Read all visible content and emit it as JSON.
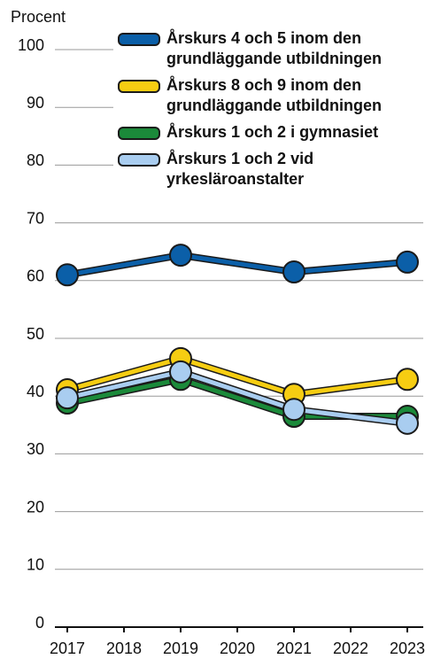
{
  "chart_data": {
    "type": "line",
    "y_label": "Procent",
    "x": [
      2017,
      2019,
      2021,
      2023
    ],
    "series": [
      {
        "name": "Årskurs 4 och 5 inom den grundläggande utbildningen",
        "color": "#0b5fa8",
        "values": [
          61.0,
          64.4,
          61.5,
          63.2
        ]
      },
      {
        "name": "Årskurs 8 och 9 inom den grundläggande utbildningen",
        "color": "#f6cd12",
        "values": [
          41.1,
          46.5,
          40.3,
          42.9
        ]
      },
      {
        "name": "Årskurs 1 och 2 i gymnasiet",
        "color": "#1b8a3a",
        "values": [
          38.8,
          42.9,
          36.5,
          36.5
        ]
      },
      {
        "name": "Årskurs 1 och 2 vid yrkesläroanstalter",
        "color": "#a9cdf0",
        "values": [
          39.7,
          44.2,
          37.7,
          35.3
        ]
      }
    ],
    "xlim": [
      2016.75,
      2023.25
    ],
    "xticks": [
      2017,
      2018,
      2019,
      2020,
      2021,
      2022,
      2023
    ],
    "ylim": [
      0,
      100
    ],
    "yticks": [
      0,
      10,
      20,
      30,
      40,
      50,
      60,
      70,
      80,
      90,
      100
    ],
    "grid": true
  }
}
